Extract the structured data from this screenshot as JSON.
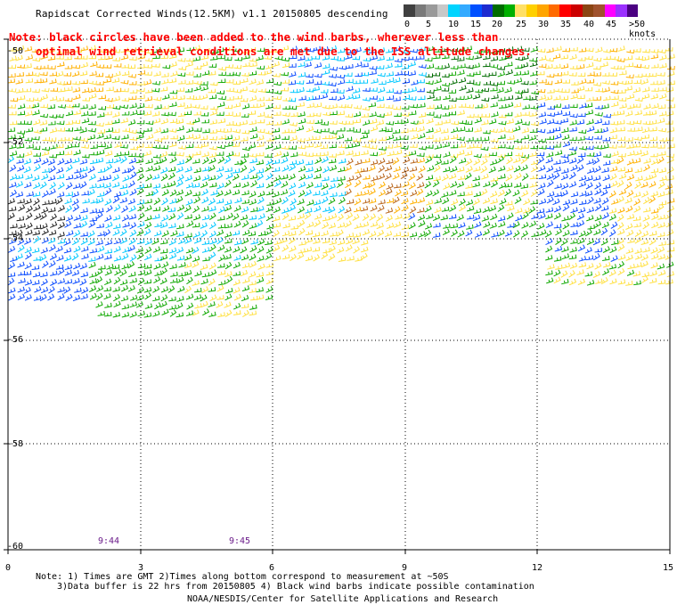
{
  "header": {
    "title": "Rapidscat Corrected Winds(12.5KM) v1.1 20150805 descending"
  },
  "note": {
    "line1": "Note: black circles have been added to the wind barbs, wherever less than",
    "line2": "optimal wind retrieval conditions are met due to the ISS altitude changes."
  },
  "legend": {
    "colors": [
      "#404040",
      "#7a7a7a",
      "#9a9a9a",
      "#c8c8c8",
      "#00d4ff",
      "#33aaff",
      "#0050ff",
      "#1e2bd0",
      "#006b00",
      "#00b000",
      "#ffe066",
      "#ffd000",
      "#ffa500",
      "#ff6a00",
      "#ff0000",
      "#cc0000",
      "#8b4513",
      "#a0522d",
      "#ff00ff",
      "#9b30ff",
      "#4b0082"
    ],
    "labels": [
      "0",
      "5",
      "10",
      "15",
      "20",
      "25",
      "30",
      "35",
      "40",
      "45",
      ">50 knots"
    ]
  },
  "axes": {
    "x_ticks": [
      "0",
      "3",
      "6",
      "9",
      "12",
      "15"
    ],
    "y_ticks": [
      "-50",
      "-52",
      "-54",
      "-56",
      "-58",
      "-60"
    ]
  },
  "times": [
    "9:44",
    "9:45"
  ],
  "footer": {
    "line1": "Note: 1) Times are GMT 2)Times along bottom correspond to measurement at ~50S",
    "line2": "3)Data buffer is 22 hrs from 20150805 4) Black wind barbs indicate possible contamination",
    "line3": "NOAA/NESDIS/Center for Satellite Applications and Research"
  }
}
